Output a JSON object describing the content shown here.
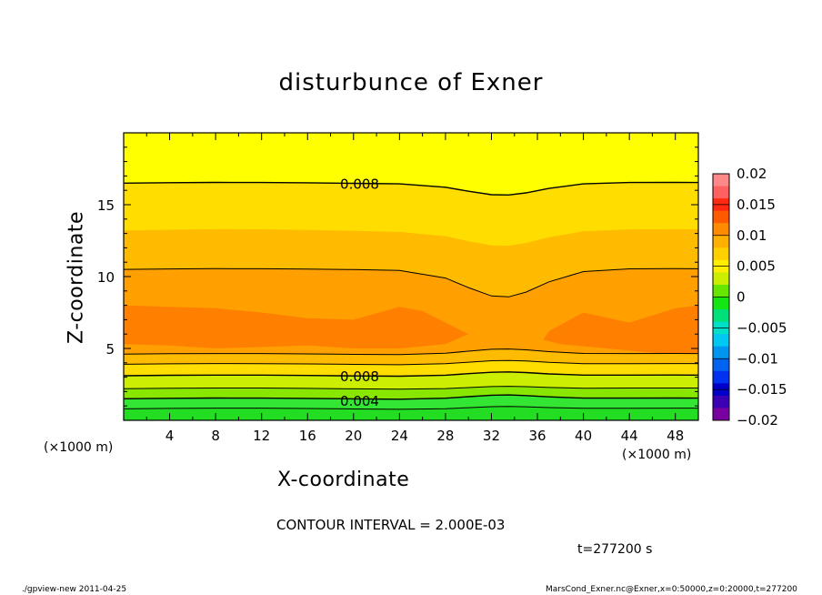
{
  "chart_data": {
    "type": "contour",
    "title": "disturbunce of Exner",
    "xlabel": "X-coordinate",
    "ylabel": "Z-coordinate",
    "x_unit": "(×1000 m)",
    "xlim": [
      0,
      50
    ],
    "ylim": [
      0,
      20
    ],
    "x_ticks": [
      4,
      8,
      12,
      16,
      20,
      24,
      28,
      32,
      36,
      40,
      44,
      48
    ],
    "y_ticks": [
      5,
      10,
      15
    ],
    "contour_interval": "CONTOUR INTERVAL = 2.000E-03",
    "contour_labels": [
      {
        "text": "0.008",
        "x": 18,
        "z": 16.5
      },
      {
        "text": "0.008",
        "x": 18,
        "z": 3.1
      },
      {
        "text": "0.004",
        "x": 18,
        "z": 1.4
      }
    ],
    "colorbar": {
      "levels": [
        0.02,
        0.015,
        0.01,
        0.005,
        0,
        -0.005,
        -0.01,
        -0.015,
        -0.02
      ],
      "labels": [
        "0.02",
        "0.015",
        "0.01",
        "0.005",
        "0",
        "−0.005",
        "−0.01",
        "−0.015",
        "−0.02"
      ],
      "colors": [
        "#ff8888",
        "#ff6060",
        "#ff2a10",
        "#ff5a00",
        "#ff8c00",
        "#ffb000",
        "#ffd000",
        "#ffee00",
        "#ccee00",
        "#66e600",
        "#14e614",
        "#00e07a",
        "#00e0c8",
        "#00c8f0",
        "#0096f0",
        "#0064f0",
        "#0032f0",
        "#0000c8",
        "#3c00b4",
        "#7800a0"
      ]
    },
    "fill_colors": {
      "top": "#ffff00",
      "upper": "#ffdd00",
      "mid": "#ffbb00",
      "core": "#ffa000",
      "max": "#ff8000",
      "low1": "#ccee00",
      "low2": "#88e600",
      "low3": "#33e633",
      "low4": "#22dd22"
    },
    "time": "t=277200 s"
  },
  "footer": {
    "left": "./gpview-new  2011-04-25",
    "right": "MarsCond_Exner.nc@Exner,x=0:50000,z=0:20000,t=277200"
  }
}
